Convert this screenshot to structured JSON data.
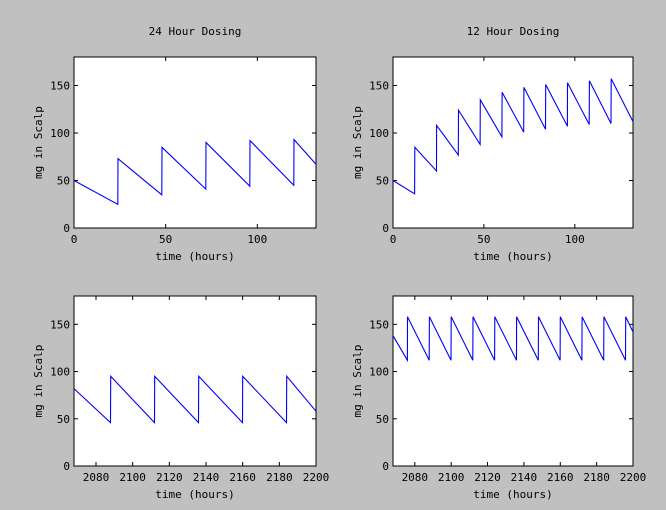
{
  "window": {
    "background": "#c0c0c0"
  },
  "chart_data": [
    {
      "type": "line",
      "title": "24 Hour Dosing",
      "xlabel": "time (hours)",
      "ylabel": "mg in Scalp",
      "xlim": [
        0,
        132
      ],
      "ylim": [
        0,
        180
      ],
      "xticks": [
        0,
        50,
        100
      ],
      "yticks": [
        0,
        50,
        100,
        150
      ],
      "grid": false,
      "series": [
        {
          "color": "#0000ff",
          "x": [
            0,
            23.9,
            24,
            47.9,
            48,
            71.9,
            72,
            95.9,
            96,
            119.9,
            120,
            132
          ],
          "y": [
            50,
            25,
            73,
            35,
            85,
            41,
            90,
            44,
            92,
            45,
            93,
            67
          ]
        }
      ]
    },
    {
      "type": "line",
      "title": "12 Hour Dosing",
      "xlabel": "time (hours)",
      "ylabel": "mg in Scalp",
      "xlim": [
        0,
        132
      ],
      "ylim": [
        0,
        180
      ],
      "xticks": [
        0,
        50,
        100
      ],
      "yticks": [
        0,
        50,
        100,
        150
      ],
      "grid": false,
      "series": [
        {
          "color": "#0000ff",
          "x": [
            0,
            11.9,
            12,
            23.9,
            24,
            35.9,
            36,
            47.9,
            48,
            59.9,
            60,
            71.9,
            72,
            83.9,
            84,
            95.9,
            96,
            107.9,
            108,
            119.9,
            120,
            132
          ],
          "y": [
            50,
            36,
            85,
            60,
            108,
            77,
            124,
            88,
            135,
            96,
            143,
            101,
            148,
            104,
            151,
            107,
            153,
            109,
            155,
            110,
            157,
            112
          ]
        }
      ]
    },
    {
      "type": "line",
      "title": "",
      "xlabel": "time (hours)",
      "ylabel": "mg in Scalp",
      "xlim": [
        2068,
        2200
      ],
      "ylim": [
        0,
        180
      ],
      "xticks": [
        2080,
        2100,
        2120,
        2140,
        2160,
        2180,
        2200
      ],
      "yticks": [
        0,
        50,
        100,
        150
      ],
      "grid": false,
      "series": [
        {
          "color": "#0000ff",
          "x": [
            2068,
            2087.9,
            2088,
            2111.9,
            2112,
            2135.9,
            2136,
            2159.9,
            2160,
            2183.9,
            2184,
            2200
          ],
          "y": [
            82,
            46,
            95,
            46,
            95,
            46,
            95,
            46,
            95,
            46,
            95,
            58
          ]
        }
      ]
    },
    {
      "type": "line",
      "title": "",
      "xlabel": "time (hours)",
      "ylabel": "mg in Scalp",
      "xlim": [
        2068,
        2200
      ],
      "ylim": [
        0,
        180
      ],
      "xticks": [
        2080,
        2100,
        2120,
        2140,
        2160,
        2180,
        2200
      ],
      "yticks": [
        0,
        50,
        100,
        150
      ],
      "grid": false,
      "series": [
        {
          "color": "#0000ff",
          "x": [
            2068,
            2075.9,
            2076,
            2087.9,
            2088,
            2099.9,
            2100,
            2111.9,
            2112,
            2123.9,
            2124,
            2135.9,
            2136,
            2147.9,
            2148,
            2159.9,
            2160,
            2171.9,
            2172,
            2183.9,
            2184,
            2195.9,
            2196,
            2200
          ],
          "y": [
            138,
            112,
            158,
            112,
            158,
            112,
            158,
            112,
            158,
            112,
            158,
            112,
            158,
            112,
            158,
            112,
            158,
            112,
            158,
            112,
            158,
            112,
            158,
            142
          ]
        }
      ]
    }
  ]
}
